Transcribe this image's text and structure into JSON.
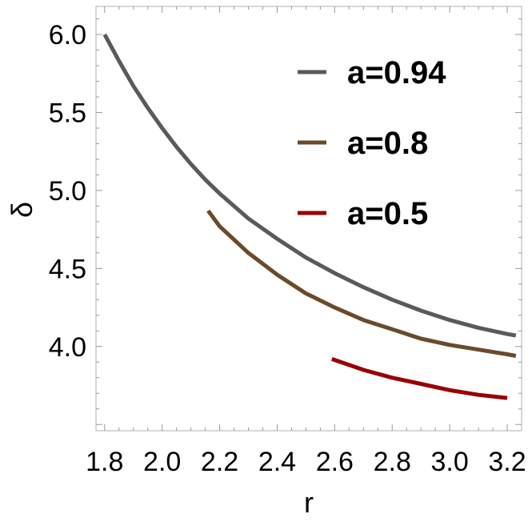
{
  "chart_data": {
    "type": "line",
    "title": "",
    "xlabel": "r",
    "ylabel": "δ",
    "xlim": [
      1.77,
      3.25
    ],
    "ylim": [
      3.46,
      6.18
    ],
    "xticks": [
      "1.8",
      "2.0",
      "2.2",
      "2.4",
      "2.6",
      "2.8",
      "3.0",
      "3.2"
    ],
    "yticks": [
      "4.0",
      "4.5",
      "5.0",
      "5.5",
      "6.0"
    ],
    "grid": false,
    "legend_position": "top-right",
    "series": [
      {
        "name": "a=0.94",
        "color": "#5a5a5a",
        "x": [
          1.8,
          1.85,
          1.9,
          1.95,
          2.0,
          2.05,
          2.1,
          2.15,
          2.2,
          2.3,
          2.4,
          2.5,
          2.6,
          2.7,
          2.8,
          2.9,
          3.0,
          3.1,
          3.2,
          3.23
        ],
        "y": [
          6.0,
          5.83,
          5.67,
          5.53,
          5.4,
          5.28,
          5.17,
          5.07,
          4.98,
          4.82,
          4.69,
          4.57,
          4.47,
          4.38,
          4.3,
          4.23,
          4.17,
          4.12,
          4.08,
          4.07
        ]
      },
      {
        "name": "a=0.8",
        "color": "#6b4a2a",
        "x": [
          2.16,
          2.2,
          2.3,
          2.4,
          2.5,
          2.6,
          2.7,
          2.8,
          2.9,
          3.0,
          3.1,
          3.2,
          3.23
        ],
        "y": [
          4.87,
          4.77,
          4.6,
          4.46,
          4.34,
          4.25,
          4.17,
          4.11,
          4.05,
          4.01,
          3.98,
          3.95,
          3.94
        ]
      },
      {
        "name": "a=0.5",
        "color": "#990000",
        "x": [
          2.59,
          2.7,
          2.8,
          2.9,
          3.0,
          3.1,
          3.2
        ],
        "y": [
          3.92,
          3.85,
          3.8,
          3.76,
          3.72,
          3.69,
          3.67
        ]
      }
    ]
  }
}
